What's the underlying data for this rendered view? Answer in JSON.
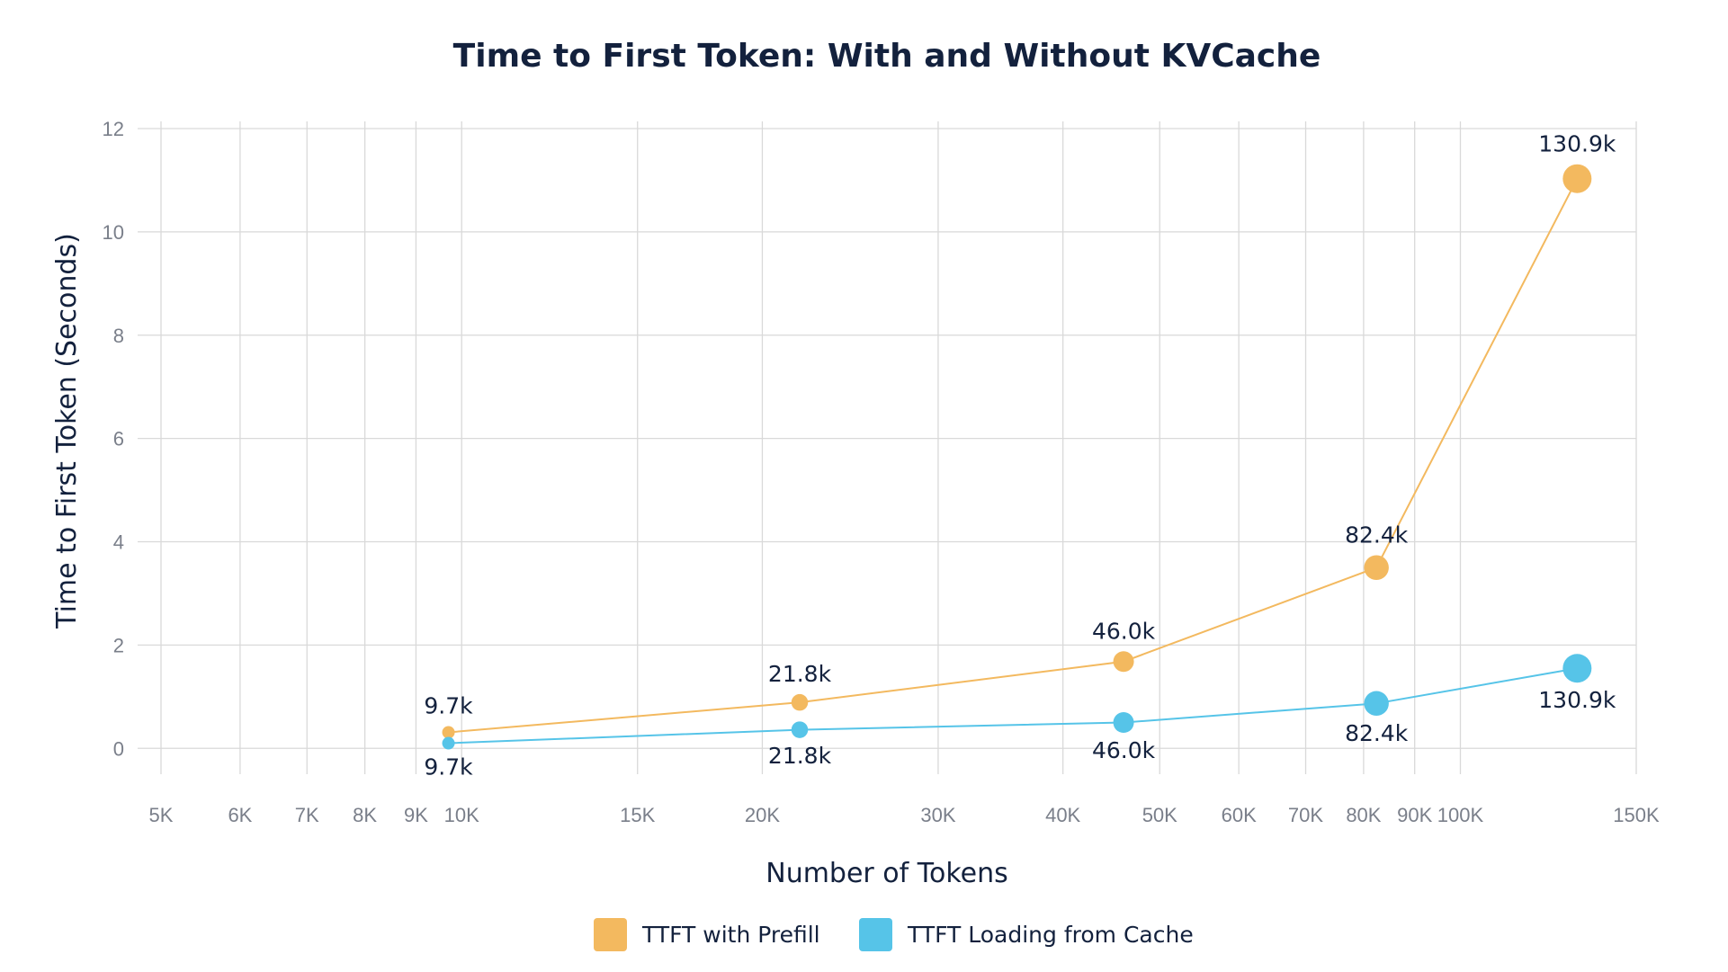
{
  "chart_data": {
    "type": "line",
    "title": "Time to First Token: With and Without KVCache",
    "xlabel": "Number of Tokens",
    "ylabel": "Time to First Token (Seconds)",
    "x_scale": "log",
    "xlim": [
      5000,
      150000
    ],
    "ylim": [
      -0.5,
      12
    ],
    "grid": true,
    "legend_position": "bottom",
    "x_ticks": [
      {
        "value": 5000,
        "label": "5K"
      },
      {
        "value": 6000,
        "label": "6K"
      },
      {
        "value": 7000,
        "label": "7K"
      },
      {
        "value": 8000,
        "label": "8K"
      },
      {
        "value": 9000,
        "label": "9K"
      },
      {
        "value": 10000,
        "label": "10K"
      },
      {
        "value": 15000,
        "label": "15K"
      },
      {
        "value": 20000,
        "label": "20K"
      },
      {
        "value": 30000,
        "label": "30K"
      },
      {
        "value": 40000,
        "label": "40K"
      },
      {
        "value": 50000,
        "label": "50K"
      },
      {
        "value": 60000,
        "label": "60K"
      },
      {
        "value": 70000,
        "label": "70K"
      },
      {
        "value": 80000,
        "label": "80K"
      },
      {
        "value": 90000,
        "label": "90K"
      },
      {
        "value": 100000,
        "label": "100K"
      },
      {
        "value": 150000,
        "label": "150K"
      }
    ],
    "y_ticks": [
      {
        "value": 0,
        "label": "0"
      },
      {
        "value": 2,
        "label": "2"
      },
      {
        "value": 4,
        "label": "4"
      },
      {
        "value": 6,
        "label": "6"
      },
      {
        "value": 8,
        "label": "8"
      },
      {
        "value": 10,
        "label": "10"
      },
      {
        "value": 12,
        "label": "12"
      }
    ],
    "series": [
      {
        "name": "TTFT with Prefill",
        "color": "#f3b95f",
        "label_position": "above",
        "points": [
          {
            "x": 9700,
            "y": 0.31,
            "label": "9.7k"
          },
          {
            "x": 21800,
            "y": 0.89,
            "label": "21.8k"
          },
          {
            "x": 46000,
            "y": 1.68,
            "label": "46.0k"
          },
          {
            "x": 82400,
            "y": 3.5,
            "label": "82.4k"
          },
          {
            "x": 130900,
            "y": 11.03,
            "label": "130.9k"
          }
        ]
      },
      {
        "name": "TTFT Loading from Cache",
        "color": "#56c4e8",
        "label_position": "below",
        "points": [
          {
            "x": 9700,
            "y": 0.1,
            "label": "9.7k"
          },
          {
            "x": 21800,
            "y": 0.36,
            "label": "21.8k"
          },
          {
            "x": 46000,
            "y": 0.5,
            "label": "46.0k"
          },
          {
            "x": 82400,
            "y": 0.87,
            "label": "82.4k"
          },
          {
            "x": 130900,
            "y": 1.55,
            "label": "130.9k"
          }
        ]
      }
    ]
  }
}
